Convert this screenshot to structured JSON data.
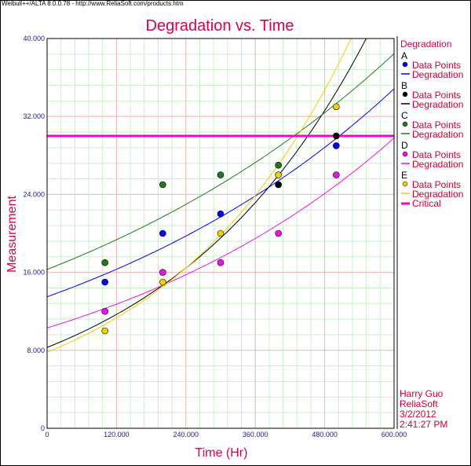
{
  "header_text": "Weibull++/ALTA 8.0.0.78 - http://www.ReliaSoft.com/products.htm",
  "colors": {
    "title": "#dd0044",
    "tick": "#1a1a8c",
    "major_grid": "#f2b8b8",
    "minor_grid": "#c9f0c9",
    "critical": "#ff00cc",
    "A": "#0000ff",
    "B": "#000000",
    "C": "#1f7a1f",
    "D": "#ee11ee",
    "E": "#f0d000"
  },
  "chart_data": {
    "type": "scatter",
    "title": "Degradation vs. Time",
    "xlabel": "Time (Hr)",
    "ylabel": "Measurement",
    "xlim": [
      0,
      600
    ],
    "ylim": [
      0,
      40
    ],
    "x_ticks": [
      0,
      120,
      240,
      360,
      480,
      600
    ],
    "x_tick_labels": [
      "0",
      "120.000",
      "240.000",
      "360.000",
      "480.000",
      "600.000"
    ],
    "y_ticks": [
      0,
      8,
      16,
      24,
      32,
      40
    ],
    "y_tick_labels": [
      "0",
      "8.000",
      "16.000",
      "24.000",
      "32.000",
      "40.000"
    ],
    "grid": true,
    "legend_title": "Degradation",
    "legend_placement": "right",
    "critical_value": 30,
    "critical_label": "Critical",
    "series": [
      {
        "name": "A",
        "color_key": "A",
        "points_label": "Data Points",
        "line_label": "Degradation",
        "x": [
          100,
          200,
          300,
          400,
          500
        ],
        "y": [
          15,
          20,
          22,
          25,
          29
        ],
        "fit": {
          "a": 13.5,
          "b": 0.00158
        }
      },
      {
        "name": "B",
        "color_key": "B",
        "points_label": "Data Points",
        "line_label": "Degradation",
        "x": [
          400,
          500
        ],
        "y": [
          25,
          30
        ],
        "fit": {
          "a": 8.3,
          "b": 0.00285
        }
      },
      {
        "name": "C",
        "color_key": "C",
        "points_label": "Data Points",
        "line_label": "Degradation",
        "x": [
          100,
          200,
          300,
          400
        ],
        "y": [
          17,
          25,
          26,
          27
        ],
        "fit": {
          "a": 16.3,
          "b": 0.00143
        }
      },
      {
        "name": "D",
        "color_key": "D",
        "points_label": "Data Points",
        "line_label": "Degradation",
        "x": [
          100,
          200,
          300,
          400,
          500
        ],
        "y": [
          12,
          16,
          17,
          20,
          26
        ],
        "fit": {
          "a": 10.3,
          "b": 0.00177
        }
      },
      {
        "name": "E",
        "color_key": "E",
        "points_label": "Data Points",
        "line_label": "Degradation",
        "x": [
          100,
          200,
          300,
          400,
          500
        ],
        "y": [
          10,
          15,
          20,
          26,
          33
        ],
        "fit": {
          "a": 7.8,
          "b": 0.00311
        }
      }
    ]
  },
  "footer": {
    "author": "Harry Guo",
    "company": "ReliaSoft",
    "date": "3/2/2012",
    "time": "2:41:27 PM"
  }
}
